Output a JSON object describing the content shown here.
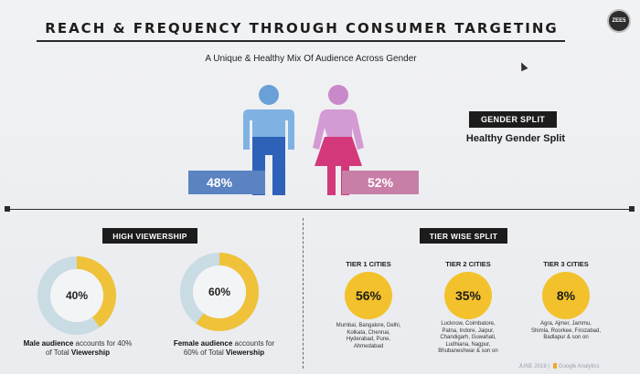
{
  "header": {
    "title": "REACH & FREQUENCY THROUGH CONSUMER TARGETING",
    "subtitle": "A Unique & Healthy Mix Of Audience Across Gender",
    "logo_text": "ZEE5"
  },
  "gender": {
    "male_percent": "48%",
    "female_percent": "52%",
    "male_color": "#5b83c2",
    "female_color": "#c77ea7",
    "badge": "GENDER SPLIT",
    "summary": "Healthy Gender Split"
  },
  "viewership": {
    "badge": "HIGH VIEWERSHIP",
    "male": {
      "value": 40,
      "label": "40%",
      "caption_bold": "Male audience",
      "caption_rest": " accounts for 40%",
      "caption_line2_prefix": "of Total ",
      "caption_line2_bold": "Viewership"
    },
    "female": {
      "value": 60,
      "label": "60%",
      "caption_bold": "Female audience",
      "caption_rest": " accounts for",
      "caption_line2_prefix": "60% of Total ",
      "caption_line2_bold": "Viewership"
    },
    "ring_color": "#efc23a",
    "track_color": "#c9dbe3"
  },
  "tiers": {
    "badge": "TIER WISE SPLIT",
    "items": [
      {
        "title": "TIER 1 CITIES",
        "value": "56%",
        "cities": [
          "Mumbai, Bangalore, Delhi,",
          "Kolkata, Chennai,",
          "Hyderabad, Pune,",
          "Ahmedabad"
        ]
      },
      {
        "title": "TIER 2 CITIES",
        "value": "35%",
        "cities": [
          "Lucknow, Coimbatore,",
          "Patna, Indore, Jaipur,",
          "Chandigarh, Guwahati,",
          "Ludhiana, Nagpur,",
          "Bhubaneshwar & son on"
        ]
      },
      {
        "title": "TIER 3 CITIES",
        "value": "8%",
        "cities": [
          "Agra, Ajmer, Jammu,",
          "Shimla, Roorkee, Firozabad,",
          "Badlapur & son on"
        ]
      }
    ]
  },
  "footer": {
    "date": "JUNE 2019 |",
    "source": "Google Analytics"
  }
}
